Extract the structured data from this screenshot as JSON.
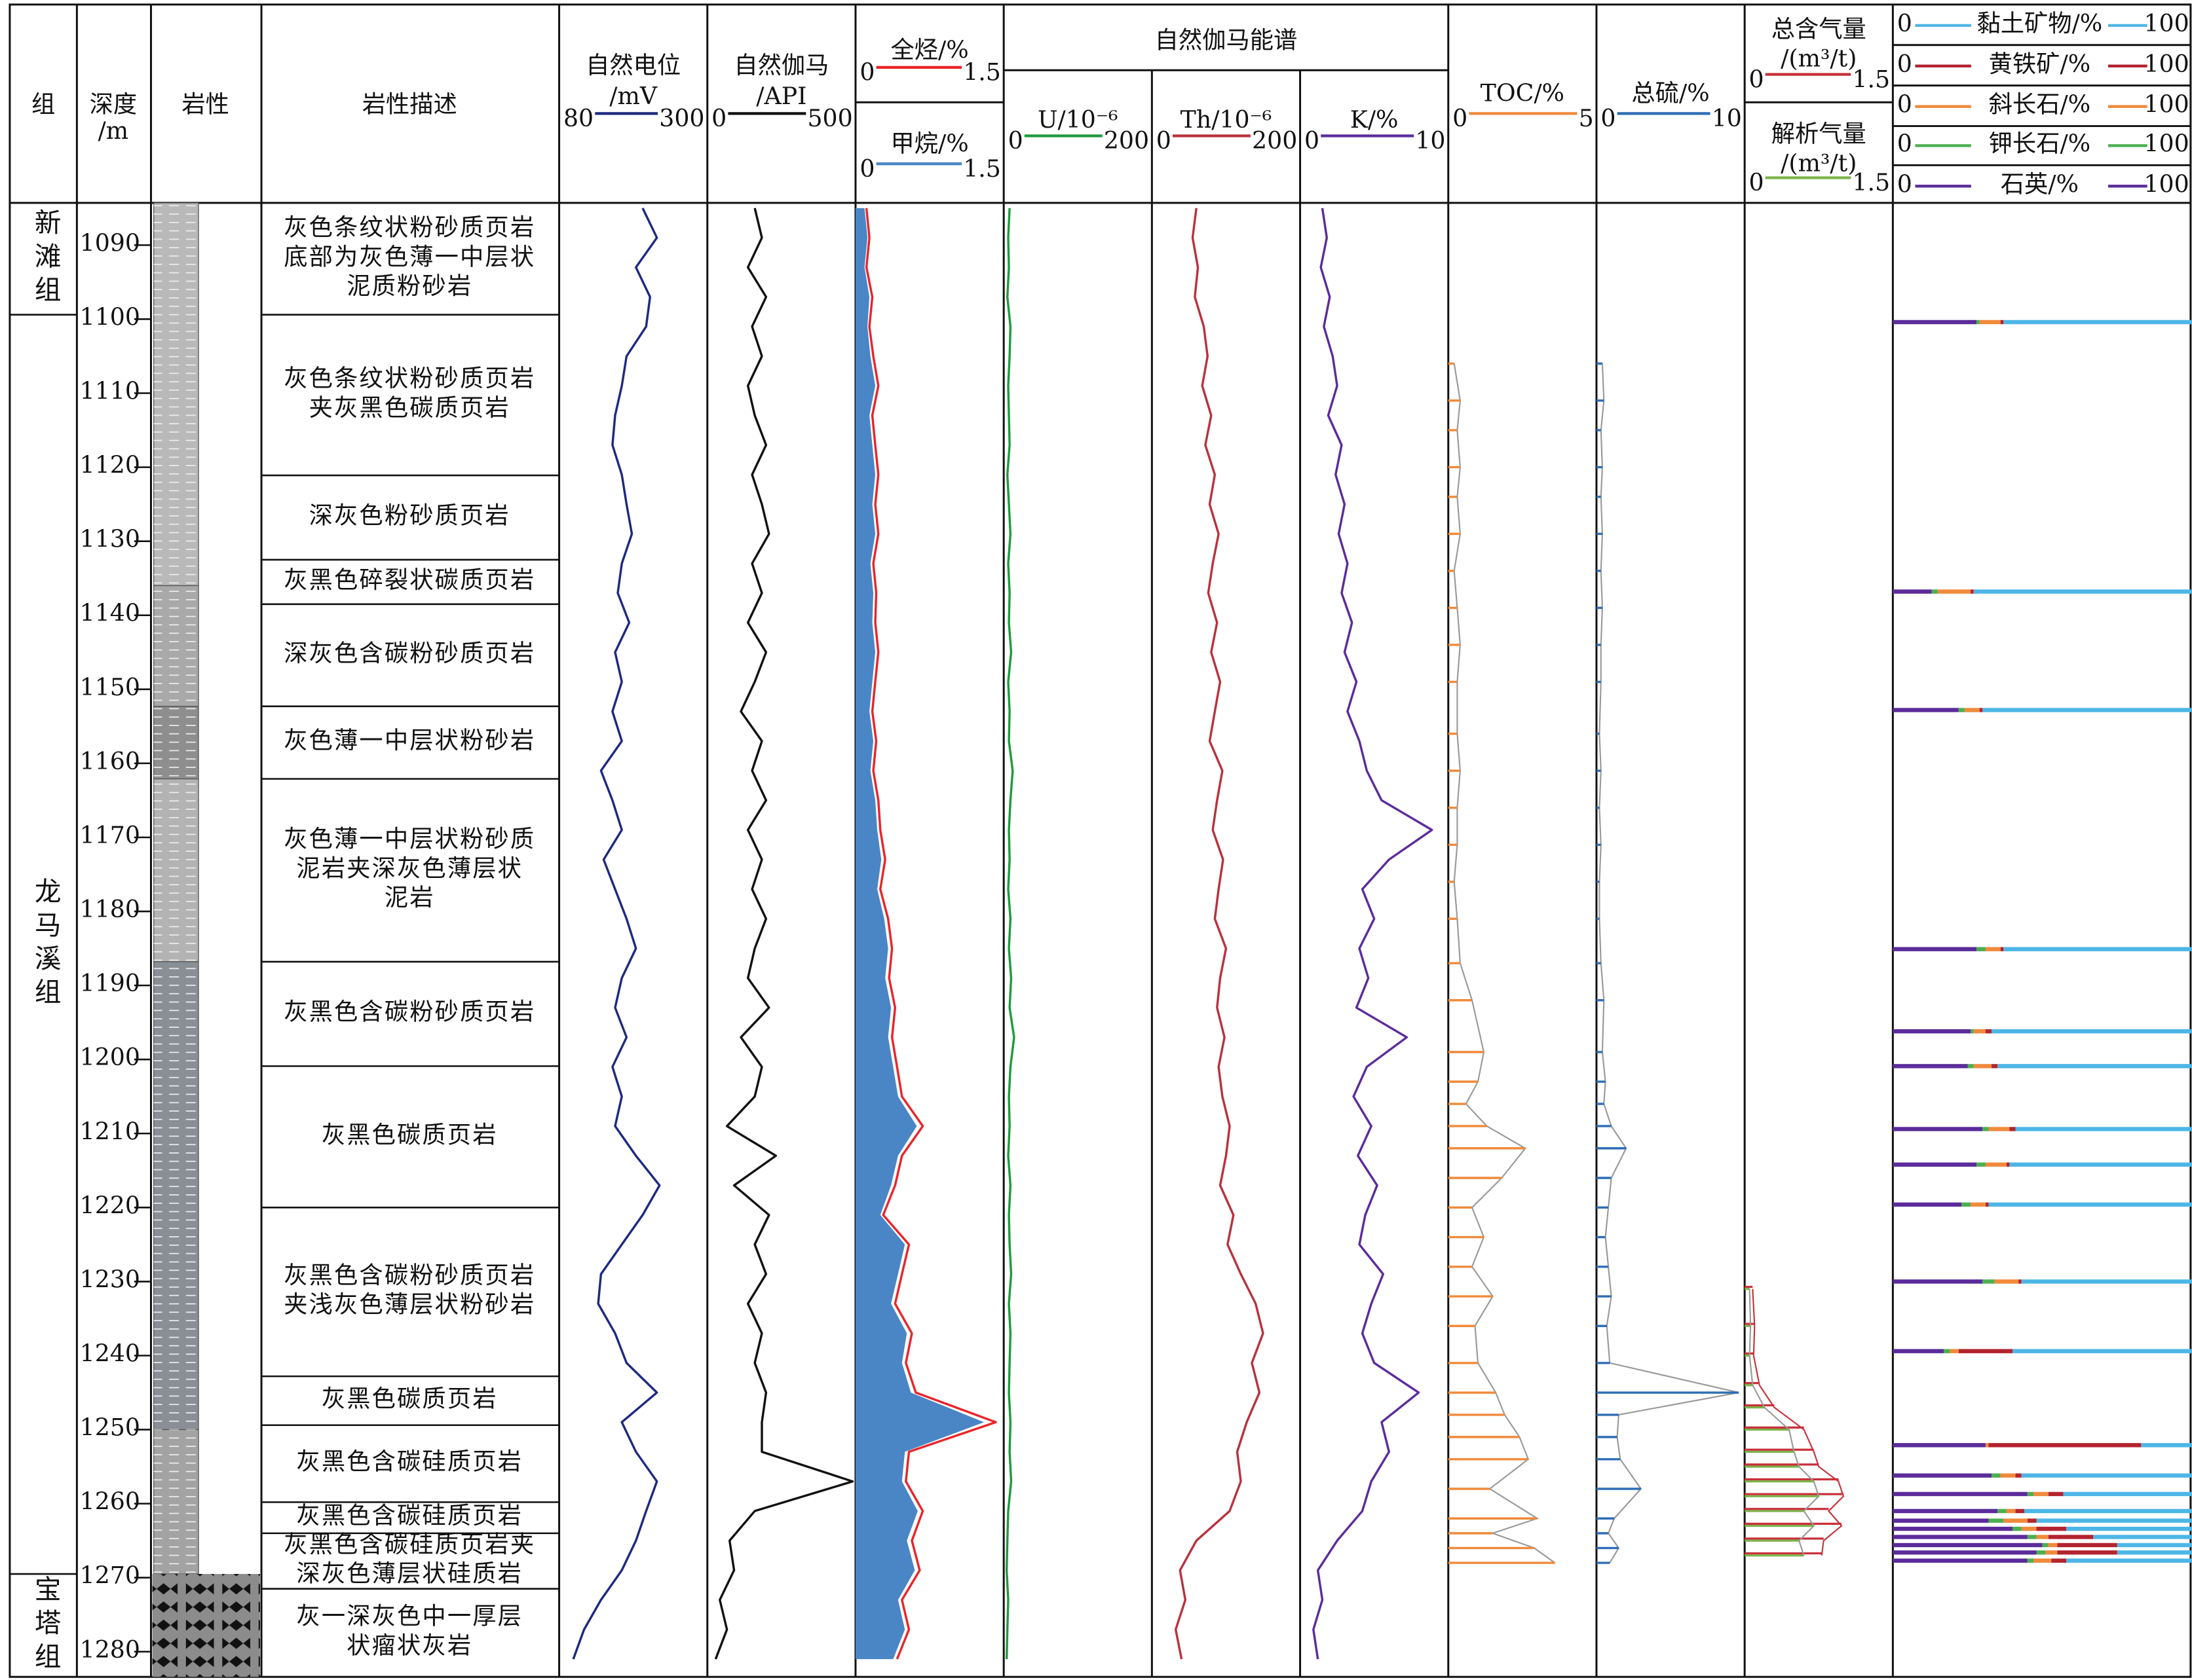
{
  "header": {
    "formation": "组",
    "depth": [
      "深度",
      "/m"
    ],
    "lithology": "岩性",
    "description": "岩性描述",
    "spectrum": "自然伽马能谱"
  },
  "depth_axis": {
    "ylim": [
      1084.3,
      1283.4
    ],
    "yticks": [
      1090,
      1100,
      1110,
      1120,
      1130,
      1140,
      1150,
      1160,
      1170,
      1180,
      1190,
      1200,
      1210,
      1220,
      1230,
      1240,
      1250,
      1260,
      1270,
      1280
    ]
  },
  "formations": [
    {
      "name": "新滩组",
      "top": 1084.3,
      "bottom": 1099.4
    },
    {
      "name": "龙马溪组",
      "top": 1099.4,
      "bottom": 1269.5
    },
    {
      "name": "宝塔组",
      "top": 1269.5,
      "bottom": 1283.4
    }
  ],
  "lithology_column": [
    {
      "top": 1084.3,
      "bottom": 1136,
      "color": "#b9b9b9"
    },
    {
      "top": 1136,
      "bottom": 1152.3,
      "color": "#a9a9a9"
    },
    {
      "top": 1152.3,
      "bottom": 1162.1,
      "color": "#8e8e8e"
    },
    {
      "top": 1162.1,
      "bottom": 1186.8,
      "color": "#b3b3b3"
    },
    {
      "top": 1186.8,
      "bottom": 1250,
      "color": "#8a8f96"
    },
    {
      "top": 1250,
      "bottom": 1269.5,
      "color": "#a3a3a3"
    }
  ],
  "limestone": {
    "top": 1269.5,
    "bottom": 1283.4,
    "color": "#8c8c8c"
  },
  "descriptions": [
    {
      "top": 1084.3,
      "bottom": 1099.4,
      "lines": [
        "灰色条纹状粉砂质页岩",
        "底部为灰色薄一中层状",
        "泥质粉砂岩"
      ]
    },
    {
      "top": 1099.4,
      "bottom": 1121.1,
      "lines": [
        "灰色条纹状粉砂质页岩",
        "夹灰黑色碳质页岩"
      ]
    },
    {
      "top": 1121.1,
      "bottom": 1132.5,
      "lines": [
        "深灰色粉砂质页岩"
      ]
    },
    {
      "top": 1132.5,
      "bottom": 1138.5,
      "lines": [
        "灰黑色碎裂状碳质页岩"
      ]
    },
    {
      "top": 1138.5,
      "bottom": 1152.3,
      "lines": [
        "深灰色含碳粉砂质页岩"
      ]
    },
    {
      "top": 1152.3,
      "bottom": 1162.1,
      "lines": [
        "灰色薄一中层状粉砂岩"
      ]
    },
    {
      "top": 1162.1,
      "bottom": 1186.8,
      "lines": [
        "灰色薄一中层状粉砂质",
        "泥岩夹深灰色薄层状",
        "泥岩"
      ]
    },
    {
      "top": 1186.8,
      "bottom": 1200.9,
      "lines": [
        "灰黑色含碳粉砂质页岩"
      ]
    },
    {
      "top": 1200.9,
      "bottom": 1220.0,
      "lines": [
        "灰黑色碳质页岩"
      ]
    },
    {
      "top": 1220.0,
      "bottom": 1242.8,
      "lines": [
        "灰黑色含碳粉砂质页岩",
        "夹浅灰色薄层状粉砂岩"
      ]
    },
    {
      "top": 1242.8,
      "bottom": 1249.4,
      "lines": [
        "灰黑色碳质页岩"
      ]
    },
    {
      "top": 1249.4,
      "bottom": 1259.8,
      "lines": [
        "灰黑色含碳硅质页岩"
      ]
    },
    {
      "top": 1259.8,
      "bottom": 1264.0,
      "lines": [
        "灰黑色含碳硅质页岩"
      ]
    },
    {
      "top": 1264.0,
      "bottom": 1271.5,
      "lines": [
        "灰黑色含碳硅质页岩夹",
        "深灰色薄层状硅质岩"
      ]
    },
    {
      "top": 1271.5,
      "bottom": 1283.4,
      "lines": [
        "灰一深灰色中一厚层",
        "状瘤状灰岩"
      ]
    }
  ],
  "curves": {
    "depths": [
      1085,
      1089,
      1093,
      1097,
      1101,
      1105,
      1109,
      1113,
      1117,
      1121,
      1125,
      1129,
      1133,
      1137,
      1141,
      1145,
      1149,
      1153,
      1157,
      1161,
      1165,
      1169,
      1173,
      1177,
      1181,
      1185,
      1189,
      1193,
      1197,
      1201,
      1205,
      1209,
      1213,
      1217,
      1221,
      1225,
      1229,
      1233,
      1237,
      1241,
      1245,
      1249,
      1253,
      1257,
      1261,
      1265,
      1269,
      1273,
      1277,
      1281
    ],
    "items": [
      {
        "label": [
          "自然电位",
          "/mV"
        ],
        "color": "#1d2a80",
        "xlim": [
          80,
          300
        ],
        "values": [
          204,
          225,
          194,
          215,
          209,
          180,
          173,
          163,
          159,
          173,
          180,
          188,
          173,
          167,
          184,
          163,
          173,
          159,
          173,
          142,
          159,
          173,
          146,
          163,
          180,
          194,
          173,
          163,
          180,
          159,
          173,
          163,
          194,
          229,
          204,
          173,
          142,
          138,
          163,
          180,
          225,
          173,
          194,
          225,
          209,
          194,
          173,
          142,
          117,
          101
        ]
      },
      {
        "label": [
          "自然伽马",
          "/API"
        ],
        "color": "#111111",
        "xlim": [
          0,
          500
        ],
        "values": [
          160,
          184,
          137,
          198,
          151,
          184,
          137,
          160,
          198,
          151,
          184,
          208,
          151,
          184,
          137,
          198,
          160,
          113,
          184,
          151,
          198,
          137,
          184,
          151,
          198,
          160,
          137,
          208,
          113,
          184,
          160,
          66,
          231,
          90,
          208,
          160,
          198,
          137,
          184,
          160,
          198,
          184,
          184,
          490,
          160,
          75,
          90,
          42,
          66,
          28
        ]
      },
      {
        "label": [
          "全烃/%"
        ],
        "color": "#e8252a",
        "xlim": [
          0,
          1.5
        ],
        "values": [
          0.11,
          0.14,
          0.11,
          0.17,
          0.14,
          0.18,
          0.23,
          0.17,
          0.2,
          0.23,
          0.2,
          0.23,
          0.18,
          0.21,
          0.2,
          0.23,
          0.2,
          0.17,
          0.21,
          0.18,
          0.23,
          0.25,
          0.3,
          0.25,
          0.33,
          0.37,
          0.34,
          0.4,
          0.37,
          0.42,
          0.47,
          0.68,
          0.47,
          0.4,
          0.28,
          0.54,
          0.47,
          0.4,
          0.57,
          0.51,
          0.61,
          1.42,
          0.54,
          0.51,
          0.68,
          0.57,
          0.65,
          0.47,
          0.54,
          0.42
        ]
      },
      {
        "label": [
          "甲烷/%"
        ],
        "color": "#4a86c5",
        "fill": true,
        "xlim": [
          0,
          1.5
        ],
        "values": [
          0.09,
          0.12,
          0.09,
          0.14,
          0.12,
          0.15,
          0.2,
          0.14,
          0.17,
          0.2,
          0.17,
          0.2,
          0.15,
          0.18,
          0.17,
          0.2,
          0.17,
          0.14,
          0.18,
          0.15,
          0.2,
          0.22,
          0.26,
          0.22,
          0.29,
          0.33,
          0.3,
          0.36,
          0.33,
          0.38,
          0.43,
          0.62,
          0.43,
          0.36,
          0.25,
          0.5,
          0.43,
          0.36,
          0.52,
          0.47,
          0.56,
          1.3,
          0.5,
          0.47,
          0.63,
          0.52,
          0.6,
          0.43,
          0.5,
          0.38
        ]
      },
      {
        "label": [
          "U/10⁻⁶"
        ],
        "color": "#1f9a3c",
        "xlim": [
          0,
          200
        ],
        "values": [
          8,
          6,
          7,
          5,
          9,
          8,
          6,
          7,
          8,
          5,
          7,
          9,
          6,
          8,
          7,
          10,
          6,
          8,
          7,
          12,
          9,
          7,
          8,
          6,
          9,
          7,
          10,
          8,
          14,
          9,
          7,
          8,
          6,
          9,
          7,
          8,
          10,
          7,
          9,
          8,
          7,
          9,
          8,
          10,
          6,
          5,
          4,
          6,
          5,
          4
        ]
      },
      {
        "label": [
          "Th/10⁻⁶"
        ],
        "color": "#b8323f",
        "xlim": [
          0,
          200
        ],
        "values": [
          60,
          55,
          62,
          58,
          70,
          75,
          68,
          80,
          72,
          85,
          78,
          90,
          82,
          76,
          88,
          80,
          92,
          85,
          78,
          95,
          88,
          82,
          96,
          90,
          85,
          100,
          92,
          88,
          98,
          90,
          95,
          105,
          100,
          92,
          110,
          102,
          120,
          140,
          150,
          135,
          145,
          128,
          115,
          120,
          105,
          60,
          38,
          45,
          32,
          40
        ]
      },
      {
        "label": [
          "K/%"
        ],
        "color": "#5b2c9a",
        "xlim": [
          0,
          10
        ],
        "values": [
          1.5,
          1.8,
          1.4,
          2.0,
          1.6,
          2.2,
          2.5,
          1.9,
          2.8,
          2.4,
          3.0,
          2.6,
          3.2,
          2.8,
          3.5,
          3.0,
          3.8,
          3.2,
          4.0,
          4.5,
          5.5,
          8.9,
          6.0,
          4.2,
          5.0,
          4.0,
          4.6,
          3.8,
          7.2,
          4.5,
          3.6,
          4.8,
          3.9,
          5.2,
          4.4,
          4.0,
          5.6,
          4.8,
          4.2,
          5.0,
          8.0,
          5.5,
          6.0,
          4.8,
          4.2,
          2.5,
          1.2,
          1.5,
          0.9,
          1.2
        ]
      }
    ]
  },
  "samples": {
    "depths": [
      1106,
      1111,
      1115,
      1120,
      1124,
      1129,
      1134,
      1139,
      1144,
      1149,
      1156,
      1161,
      1166,
      1171,
      1176,
      1181,
      1187,
      1192,
      1199,
      1203,
      1206,
      1209,
      1212,
      1216,
      1220,
      1224,
      1228,
      1232,
      1236,
      1241,
      1245,
      1248,
      1251,
      1254,
      1258,
      1262,
      1264,
      1266,
      1268
    ],
    "items": [
      {
        "label": [
          "TOC/%"
        ],
        "color": "#ef8a3b",
        "xlim": [
          0,
          5
        ],
        "values": [
          0.2,
          0.4,
          0.3,
          0.4,
          0.3,
          0.4,
          0.2,
          0.3,
          0.4,
          0.3,
          0.3,
          0.4,
          0.3,
          0.3,
          0.2,
          0.3,
          0.4,
          0.8,
          1.2,
          1.0,
          0.6,
          1.3,
          2.6,
          1.8,
          0.8,
          1.2,
          0.8,
          1.5,
          0.9,
          1.0,
          1.6,
          1.9,
          2.4,
          2.7,
          1.4,
          3.0,
          1.5,
          2.9,
          3.6
        ]
      },
      {
        "label": [
          "总硫/%"
        ],
        "color": "#2f6db5",
        "xlim": [
          0,
          10
        ],
        "values": [
          0.4,
          0.5,
          0.3,
          0.4,
          0.3,
          0.4,
          0.3,
          0.4,
          0.3,
          0.3,
          0.2,
          0.3,
          0.2,
          0.3,
          0.2,
          0.2,
          0.3,
          0.5,
          0.4,
          0.6,
          0.5,
          1.0,
          2.0,
          1.0,
          0.8,
          0.6,
          0.8,
          1.0,
          0.7,
          0.9,
          9.6,
          1.5,
          1.4,
          1.6,
          3.0,
          1.2,
          0.8,
          1.5,
          0.9
        ]
      }
    ]
  },
  "gas": {
    "depths": [
      1231,
      1236,
      1240,
      1244,
      1247,
      1250,
      1253,
      1255,
      1257,
      1259,
      1261,
      1263,
      1265,
      1267
    ],
    "items": [
      {
        "label": [
          "总含气量",
          "/(m³/t)"
        ],
        "color": "#c8303a",
        "xlim": [
          0,
          1.5
        ],
        "values": [
          0.08,
          0.1,
          0.09,
          0.15,
          0.3,
          0.6,
          0.7,
          0.75,
          0.95,
          1.0,
          0.85,
          0.98,
          0.8,
          0.78
        ]
      },
      {
        "label": [
          "解析气量",
          "/(m³/t)"
        ],
        "color": "#7cb24a",
        "xlim": [
          0,
          1.5
        ],
        "values": [
          0.05,
          0.06,
          0.05,
          0.08,
          0.2,
          0.45,
          0.5,
          0.55,
          0.7,
          0.75,
          0.6,
          0.7,
          0.55,
          0.6
        ]
      }
    ]
  },
  "minerals": {
    "xlim": [
      0,
      100
    ],
    "items": [
      {
        "name": "黏土矿物/%",
        "color": "#4db6e6"
      },
      {
        "name": "黄铁矿/%",
        "color": "#b3242f"
      },
      {
        "name": "斜长石/%",
        "color": "#f08a3c"
      },
      {
        "name": "钾长石/%",
        "color": "#4caf50"
      },
      {
        "name": "石英/%",
        "color": "#5b2c9a"
      }
    ],
    "depths": [
      1100.4,
      1136.8,
      1152.8,
      1185.1,
      1196.2,
      1200.9,
      1209.4,
      1214.2,
      1219.6,
      1230.0,
      1239.4,
      1252.1,
      1256.2,
      1258.7,
      1261.0,
      1262.3,
      1263.4,
      1264.5,
      1265.6,
      1266.6,
      1267.7
    ],
    "values": [
      [
        63,
        1,
        7,
        1,
        28
      ],
      [
        73,
        1,
        11,
        2,
        13
      ],
      [
        70,
        1,
        5,
        2,
        22
      ],
      [
        63,
        1,
        5,
        3,
        28
      ],
      [
        67,
        2,
        4,
        1,
        26
      ],
      [
        65,
        2,
        6,
        2,
        25
      ],
      [
        59,
        2,
        7,
        2,
        30
      ],
      [
        61,
        1,
        7,
        3,
        28
      ],
      [
        68,
        1,
        5,
        3,
        23
      ],
      [
        57,
        1,
        8,
        4,
        30
      ],
      [
        60,
        18,
        3,
        2,
        17
      ],
      [
        17,
        51,
        1,
        0,
        31
      ],
      [
        57,
        2,
        5,
        3,
        33
      ],
      [
        43,
        5,
        5,
        2,
        45
      ],
      [
        56,
        3,
        3,
        3,
        35
      ],
      [
        52,
        3,
        8,
        5,
        32
      ],
      [
        42,
        10,
        5,
        3,
        40
      ],
      [
        33,
        15,
        4,
        3,
        45
      ],
      [
        25,
        20,
        3,
        2,
        50
      ],
      [
        25,
        20,
        4,
        3,
        48
      ],
      [
        42,
        5,
        6,
        2,
        45
      ]
    ]
  }
}
